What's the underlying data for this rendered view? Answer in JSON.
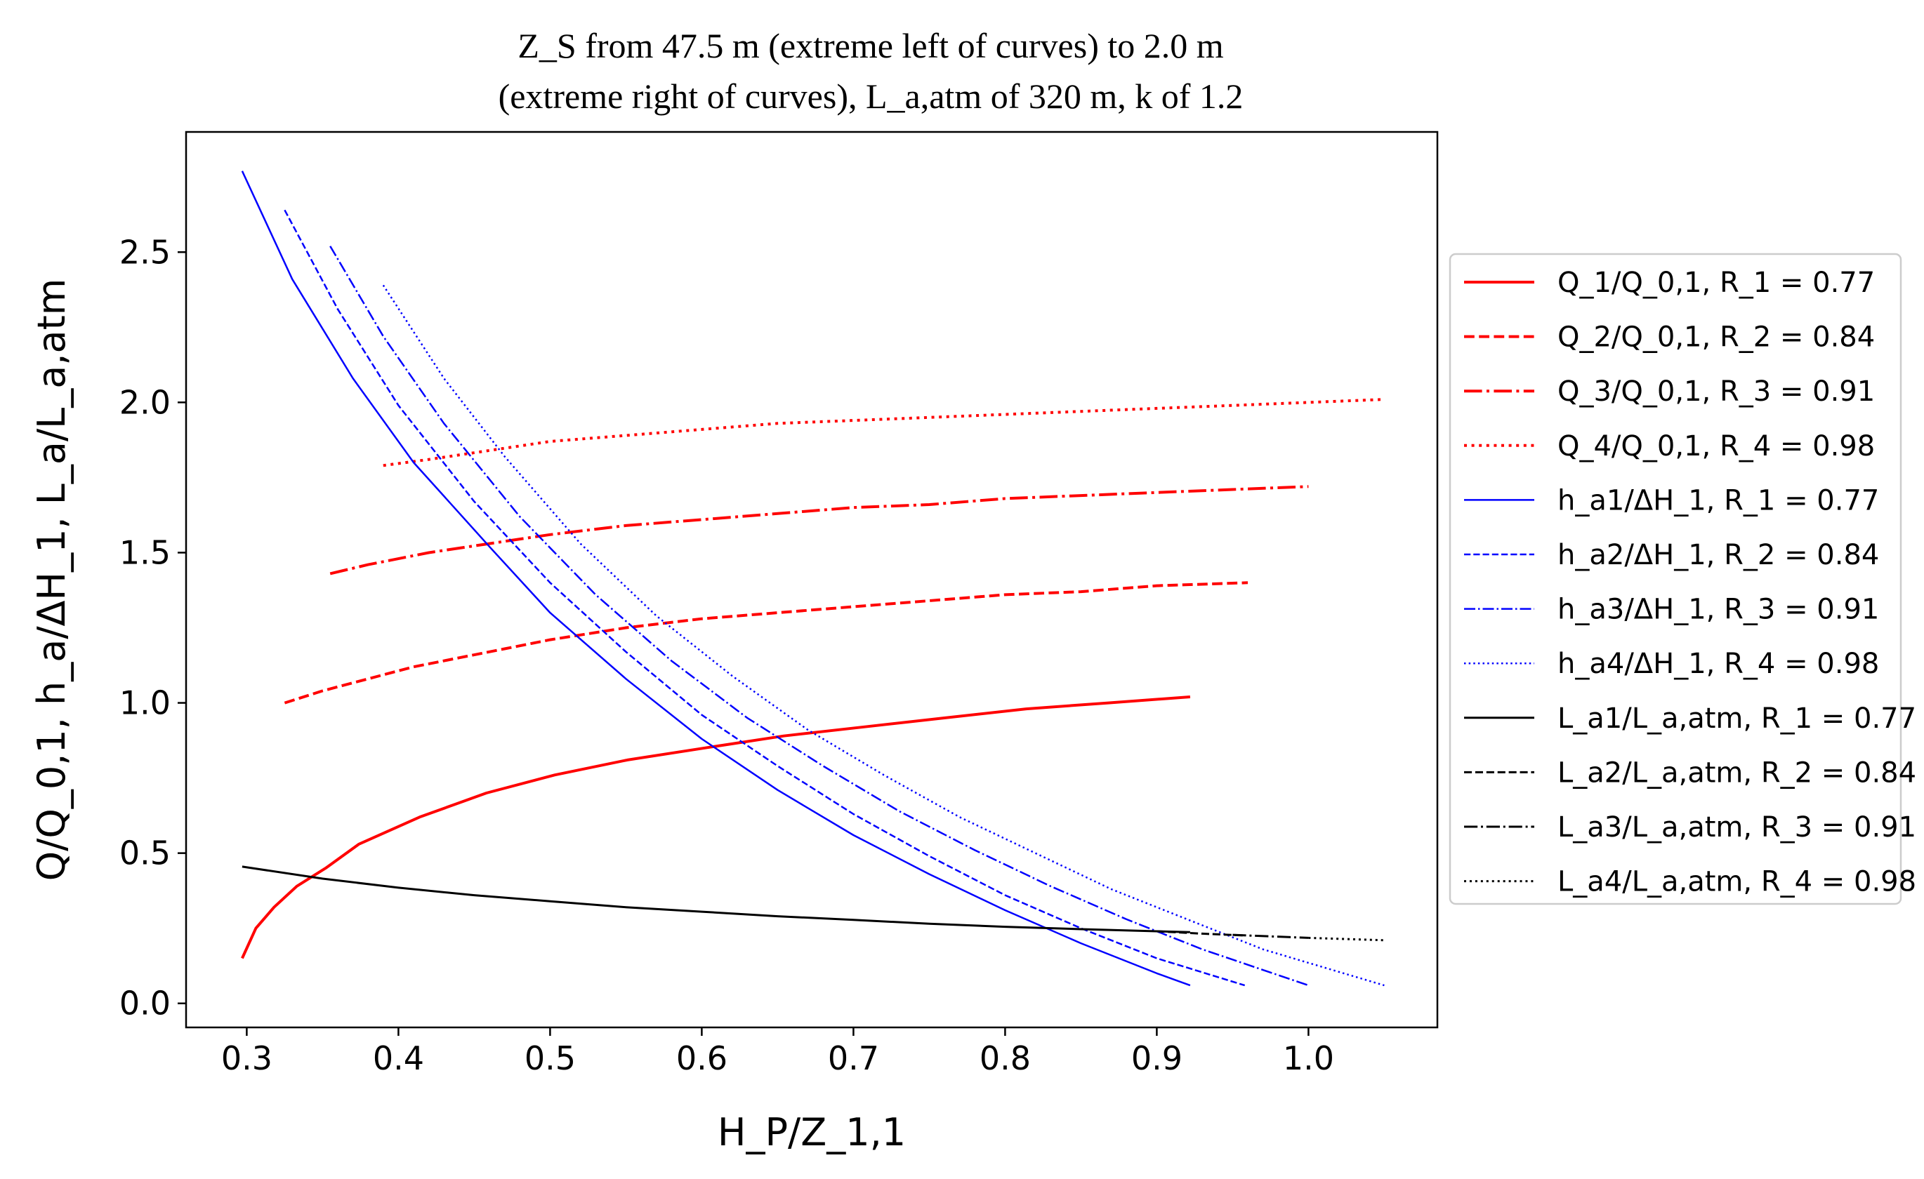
{
  "chart_data": {
    "type": "line",
    "title": "Z_S from 47.5 m (extreme left of curves) to 2.0 m (extreme right of curves), L_a,atm of 320 m, k of 1.2",
    "title_lines": [
      "Z_S from 47.5 m (extreme left of curves) to 2.0 m",
      "(extreme right of curves), L_a,atm of 320 m, k of 1.2"
    ],
    "xlabel": "H_P/Z_1,1",
    "ylabel": "Q/Q_0,1, h_a/ΔH_1, L_a/L_a,atm",
    "xlim": [
      0.26,
      1.085
    ],
    "ylim": [
      -0.08,
      2.9
    ],
    "xticks": [
      "0.3",
      "0.4",
      "0.5",
      "0.6",
      "0.7",
      "0.8",
      "0.9",
      "1.0"
    ],
    "yticks": [
      "0.0",
      "0.5",
      "1.0",
      "1.5",
      "2.0",
      "2.5"
    ],
    "grid": false,
    "legend_position": "outside right",
    "series": [
      {
        "name": "Q_1/Q_0,1, R_1 = 0.77",
        "color": "#ff0000",
        "dash": "solid",
        "width": 4,
        "x": [
          0.297,
          0.306,
          0.318,
          0.333,
          0.352,
          0.374,
          0.414,
          0.458,
          0.503,
          0.551,
          0.602,
          0.654,
          0.707,
          0.76,
          0.814,
          0.868,
          0.922
        ],
        "y": [
          0.15,
          0.25,
          0.32,
          0.39,
          0.45,
          0.53,
          0.62,
          0.7,
          0.76,
          0.81,
          0.85,
          0.89,
          0.92,
          0.95,
          0.98,
          1.0,
          1.02
        ]
      },
      {
        "name": "Q_2/Q_0,1, R_2 = 0.84",
        "color": "#ff0000",
        "dash": "dashed",
        "width": 4,
        "x": [
          0.325,
          0.35,
          0.38,
          0.41,
          0.44,
          0.47,
          0.5,
          0.55,
          0.6,
          0.65,
          0.7,
          0.75,
          0.8,
          0.85,
          0.9,
          0.96
        ],
        "y": [
          1.0,
          1.04,
          1.08,
          1.12,
          1.15,
          1.18,
          1.21,
          1.25,
          1.28,
          1.3,
          1.32,
          1.34,
          1.36,
          1.37,
          1.39,
          1.4
        ]
      },
      {
        "name": "Q_3/Q_0,1, R_3 = 0.91",
        "color": "#ff0000",
        "dash": "dashdot",
        "width": 4,
        "x": [
          0.355,
          0.38,
          0.42,
          0.46,
          0.5,
          0.55,
          0.6,
          0.65,
          0.7,
          0.75,
          0.8,
          0.85,
          0.9,
          0.95,
          1.0
        ],
        "y": [
          1.43,
          1.46,
          1.5,
          1.53,
          1.56,
          1.59,
          1.61,
          1.63,
          1.65,
          1.66,
          1.68,
          1.69,
          1.7,
          1.71,
          1.72
        ]
      },
      {
        "name": "Q_4/Q_0,1, R_4 = 0.98",
        "color": "#ff0000",
        "dash": "dotted",
        "width": 4,
        "x": [
          0.39,
          0.42,
          0.46,
          0.5,
          0.55,
          0.6,
          0.65,
          0.7,
          0.75,
          0.8,
          0.85,
          0.9,
          0.95,
          1.0,
          1.05
        ],
        "y": [
          1.79,
          1.81,
          1.84,
          1.87,
          1.89,
          1.91,
          1.93,
          1.94,
          1.95,
          1.96,
          1.97,
          1.98,
          1.99,
          2.0,
          2.01
        ]
      },
      {
        "name": "h_a1/ΔH_1, R_1 = 0.77",
        "color": "#0000ff",
        "dash": "solid",
        "width": 2.5,
        "x": [
          0.297,
          0.33,
          0.37,
          0.41,
          0.46,
          0.5,
          0.55,
          0.6,
          0.65,
          0.7,
          0.75,
          0.8,
          0.85,
          0.9,
          0.922
        ],
        "y": [
          2.77,
          2.41,
          2.08,
          1.8,
          1.52,
          1.3,
          1.08,
          0.88,
          0.71,
          0.56,
          0.43,
          0.31,
          0.2,
          0.1,
          0.06
        ]
      },
      {
        "name": "h_a2/ΔH_1, R_2 = 0.84",
        "color": "#0000ff",
        "dash": "dashed",
        "width": 2.5,
        "x": [
          0.325,
          0.36,
          0.4,
          0.45,
          0.5,
          0.55,
          0.6,
          0.65,
          0.7,
          0.75,
          0.8,
          0.85,
          0.9,
          0.958
        ],
        "y": [
          2.64,
          2.31,
          1.99,
          1.67,
          1.4,
          1.17,
          0.96,
          0.79,
          0.63,
          0.49,
          0.36,
          0.25,
          0.15,
          0.06
        ]
      },
      {
        "name": "h_a3/ΔH_1, R_3 = 0.91",
        "color": "#0000ff",
        "dash": "dashdot",
        "width": 2.5,
        "x": [
          0.355,
          0.39,
          0.43,
          0.48,
          0.53,
          0.58,
          0.63,
          0.68,
          0.73,
          0.78,
          0.83,
          0.88,
          0.93,
          1.0
        ],
        "y": [
          2.52,
          2.22,
          1.93,
          1.62,
          1.36,
          1.14,
          0.95,
          0.79,
          0.64,
          0.51,
          0.39,
          0.28,
          0.18,
          0.06
        ]
      },
      {
        "name": "h_a4/ΔH_1, R_4 = 0.98",
        "color": "#0000ff",
        "dash": "dotted",
        "width": 2.5,
        "x": [
          0.39,
          0.43,
          0.47,
          0.52,
          0.57,
          0.62,
          0.67,
          0.72,
          0.77,
          0.82,
          0.87,
          0.92,
          0.97,
          1.05
        ],
        "y": [
          2.39,
          2.08,
          1.82,
          1.53,
          1.29,
          1.09,
          0.91,
          0.76,
          0.62,
          0.5,
          0.38,
          0.28,
          0.18,
          0.06
        ]
      },
      {
        "name": "L_a1/L_a,atm, R_1 = 0.77",
        "color": "#000000",
        "dash": "solid",
        "width": 3,
        "x": [
          0.297,
          0.35,
          0.4,
          0.45,
          0.5,
          0.55,
          0.6,
          0.65,
          0.7,
          0.75,
          0.8,
          0.85,
          0.9,
          0.922
        ],
        "y": [
          0.455,
          0.415,
          0.385,
          0.36,
          0.34,
          0.32,
          0.305,
          0.29,
          0.278,
          0.265,
          0.255,
          0.247,
          0.24,
          0.237
        ]
      },
      {
        "name": "L_a2/L_a,atm, R_2 = 0.84",
        "color": "#000000",
        "dash": "dashed",
        "width": 3,
        "x": [
          0.9,
          0.93,
          0.958
        ],
        "y": [
          0.24,
          0.232,
          0.226
        ]
      },
      {
        "name": "L_a3/L_a,atm, R_3 = 0.91",
        "color": "#000000",
        "dash": "dashdot",
        "width": 3,
        "x": [
          0.95,
          0.975,
          1.0
        ],
        "y": [
          0.228,
          0.223,
          0.218
        ]
      },
      {
        "name": "L_a4/L_a,atm, R_4 = 0.98",
        "color": "#000000",
        "dash": "dotted",
        "width": 3,
        "x": [
          1.0,
          1.025,
          1.05
        ],
        "y": [
          0.218,
          0.214,
          0.21
        ]
      }
    ]
  }
}
